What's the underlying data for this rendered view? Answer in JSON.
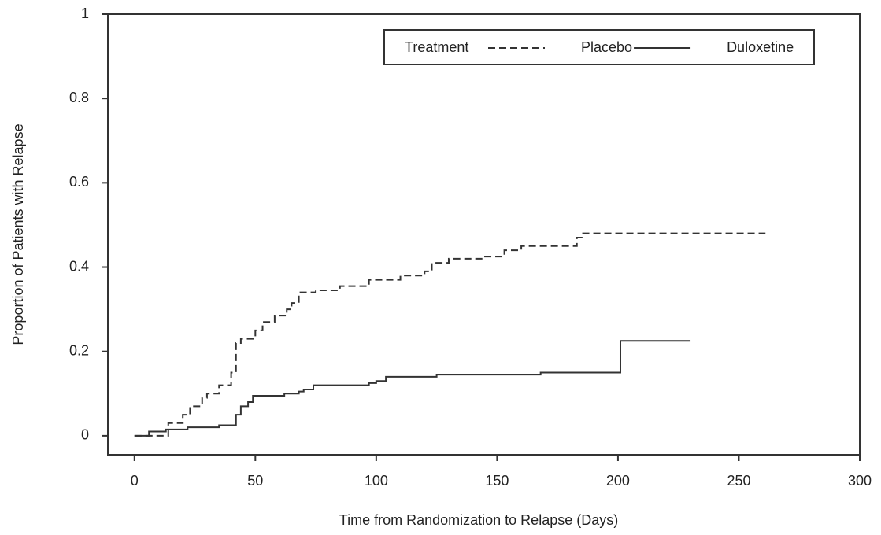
{
  "chart_data": {
    "type": "line",
    "step": true,
    "x_label": "Time from Randomization to Relapse (Days)",
    "y_label": "Proportion of Patients with Relapse",
    "legend_title": "Treatment",
    "xlim": [
      -11,
      300
    ],
    "ylim": [
      -0.045,
      1
    ],
    "xticks": [
      0,
      50,
      100,
      150,
      200,
      250,
      300
    ],
    "yticks": [
      0,
      0.2,
      0.4,
      0.6,
      0.8,
      1
    ],
    "series": [
      {
        "name": "Placebo",
        "color": "#333333",
        "dash": true,
        "x": [
          0,
          8,
          14,
          20,
          23,
          28,
          30,
          35,
          40,
          42,
          44,
          50,
          53,
          58,
          63,
          65,
          68,
          75,
          85,
          97,
          110,
          120,
          123,
          130,
          145,
          153,
          160,
          183,
          185,
          261
        ],
        "values": [
          0,
          0,
          0.03,
          0.05,
          0.07,
          0.09,
          0.1,
          0.12,
          0.15,
          0.22,
          0.23,
          0.25,
          0.27,
          0.285,
          0.3,
          0.315,
          0.34,
          0.345,
          0.355,
          0.37,
          0.38,
          0.39,
          0.41,
          0.42,
          0.425,
          0.44,
          0.45,
          0.47,
          0.48,
          0.48
        ]
      },
      {
        "name": "Duloxetine",
        "color": "#333333",
        "dash": false,
        "x": [
          0,
          6,
          13,
          22,
          35,
          42,
          44,
          47,
          49,
          62,
          68,
          70,
          74,
          97,
          100,
          104,
          125,
          168,
          201,
          230
        ],
        "values": [
          0,
          0.01,
          0.015,
          0.02,
          0.025,
          0.05,
          0.07,
          0.08,
          0.095,
          0.1,
          0.105,
          0.11,
          0.12,
          0.125,
          0.13,
          0.14,
          0.145,
          0.15,
          0.225,
          0.225
        ]
      }
    ]
  }
}
